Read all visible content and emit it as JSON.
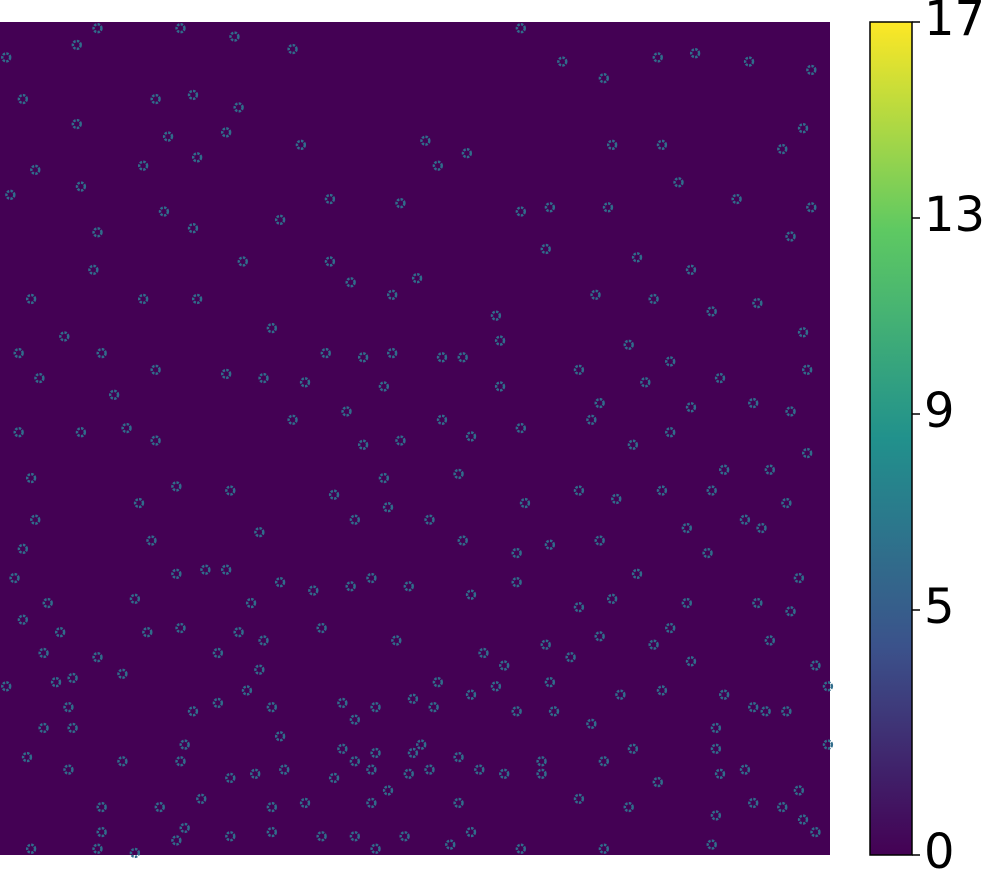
{
  "chart_data": {
    "type": "heatmap",
    "colormap": "viridis",
    "background": 0,
    "xlim": [
      0,
      200
    ],
    "ylim": [
      200,
      0
    ],
    "points": {
      "value": 6,
      "x": [
        1,
        18,
        23,
        43,
        56,
        70,
        125,
        135,
        145,
        158,
        167,
        180,
        195,
        5,
        37,
        46,
        57,
        18,
        40,
        54,
        72,
        102,
        112,
        105,
        147,
        159,
        188,
        193,
        8,
        2,
        19,
        34,
        47,
        39,
        46,
        67,
        79,
        96,
        125,
        132,
        146,
        163,
        177,
        195,
        23,
        22,
        58,
        79,
        84,
        100,
        131,
        153,
        166,
        190,
        7,
        34,
        47,
        94,
        119,
        143,
        157,
        171,
        182,
        193,
        15,
        24,
        4,
        65,
        78,
        87,
        94,
        106,
        111,
        120,
        139,
        151,
        161,
        173,
        194,
        9,
        27,
        37,
        54,
        63,
        73,
        92,
        120,
        144,
        155,
        166,
        181,
        190,
        194,
        4,
        19,
        30,
        37,
        70,
        83,
        87,
        96,
        106,
        113,
        125,
        142,
        152,
        161,
        174,
        185,
        7,
        42,
        55,
        80,
        92,
        110,
        126,
        139,
        148,
        159,
        171,
        189,
        183,
        8,
        33,
        36,
        62,
        85,
        93,
        103,
        111,
        124,
        132,
        144,
        165,
        170,
        179,
        5,
        3,
        11,
        5,
        32,
        42,
        49,
        54,
        60,
        67,
        75,
        84,
        89,
        98,
        113,
        124,
        139,
        147,
        153,
        165,
        161,
        182,
        190,
        192,
        10,
        14,
        23,
        35,
        43,
        52,
        57,
        63,
        77,
        95,
        116,
        121,
        131,
        137,
        144,
        157,
        166,
        185,
        196,
        1,
        13,
        17,
        29,
        62,
        105,
        113,
        119,
        132,
        133,
        149,
        159,
        174,
        181,
        184,
        189,
        199,
        16,
        46,
        52,
        59,
        65,
        82,
        85,
        90,
        99,
        104,
        124,
        142,
        172,
        17,
        10,
        44,
        67,
        82,
        85,
        90,
        99,
        101,
        110,
        130,
        145,
        152,
        172,
        199,
        6,
        16,
        29,
        43,
        55,
        61,
        68,
        80,
        89,
        93,
        98,
        103,
        115,
        121,
        130,
        158,
        173,
        179,
        192,
        24,
        38,
        48,
        65,
        73,
        89,
        110,
        139,
        151,
        172,
        181,
        188,
        193,
        24,
        44,
        42,
        55,
        65,
        77,
        85,
        97,
        113,
        108,
        125,
        145,
        171,
        196,
        7,
        23,
        32,
        90
      ],
      "y": [
        8,
        5,
        1,
        1,
        3,
        6,
        1,
        9,
        13,
        8,
        7,
        9,
        11,
        18,
        18,
        17,
        20,
        24,
        27,
        26,
        29,
        28,
        31,
        34,
        29,
        29,
        30,
        25,
        35,
        41,
        39,
        34,
        32,
        45,
        49,
        47,
        42,
        43,
        45,
        44,
        44,
        38,
        42,
        44,
        50,
        59,
        57,
        57,
        62,
        61,
        54,
        56,
        59,
        51,
        66,
        66,
        66,
        65,
        70,
        65,
        66,
        69,
        67,
        74,
        75,
        79,
        79,
        73,
        79,
        80,
        79,
        80,
        80,
        76,
        83,
        77,
        81,
        85,
        83,
        85,
        89,
        83,
        84,
        85,
        86,
        87,
        87,
        91,
        86,
        92,
        91,
        93,
        103,
        98,
        98,
        97,
        100,
        95,
        93,
        101,
        100,
        95,
        99,
        97,
        95,
        101,
        98,
        107,
        107,
        109,
        111,
        112,
        113,
        109,
        108,
        115,
        112,
        114,
        112,
        112,
        115,
        121,
        119,
        115,
        124,
        122,
        119,
        116,
        119,
        124,
        127,
        125,
        124,
        121,
        127,
        119,
        126,
        133,
        139,
        143,
        138,
        132,
        131,
        131,
        139,
        134,
        136,
        135,
        133,
        135,
        137,
        134,
        140,
        138,
        132,
        139,
        145,
        139,
        141,
        133,
        151,
        146,
        152,
        146,
        145,
        151,
        146,
        148,
        145,
        148,
        151,
        154,
        149,
        152,
        147,
        149,
        153,
        148,
        154,
        159,
        158,
        157,
        156,
        155,
        158,
        161,
        159,
        158,
        165,
        161,
        160,
        161,
        164,
        165,
        165,
        159,
        164,
        165,
        163,
        160,
        164,
        163,
        167,
        164,
        162,
        164,
        165,
        168,
        169,
        169,
        169,
        173,
        171,
        174,
        177,
        175,
        175,
        173,
        176,
        177,
        177,
        174,
        174,
        173,
        176,
        179,
        177,
        177,
        181,
        180,
        179,
        181,
        179,
        184,
        180,
        179,
        179,
        180,
        180,
        182,
        180,
        179,
        184,
        188,
        188,
        186,
        188,
        187,
        187,
        187,
        186,
        188,
        190,
        187,
        188,
        191,
        194,
        193,
        196,
        195,
        194,
        195,
        195,
        195,
        194,
        197,
        198,
        198,
        197,
        194,
        198,
        198,
        199,
        198
      ]
    },
    "colorbar": {
      "clim": [
        0,
        17
      ],
      "ticks": [
        0,
        5,
        9,
        13,
        17
      ]
    }
  }
}
